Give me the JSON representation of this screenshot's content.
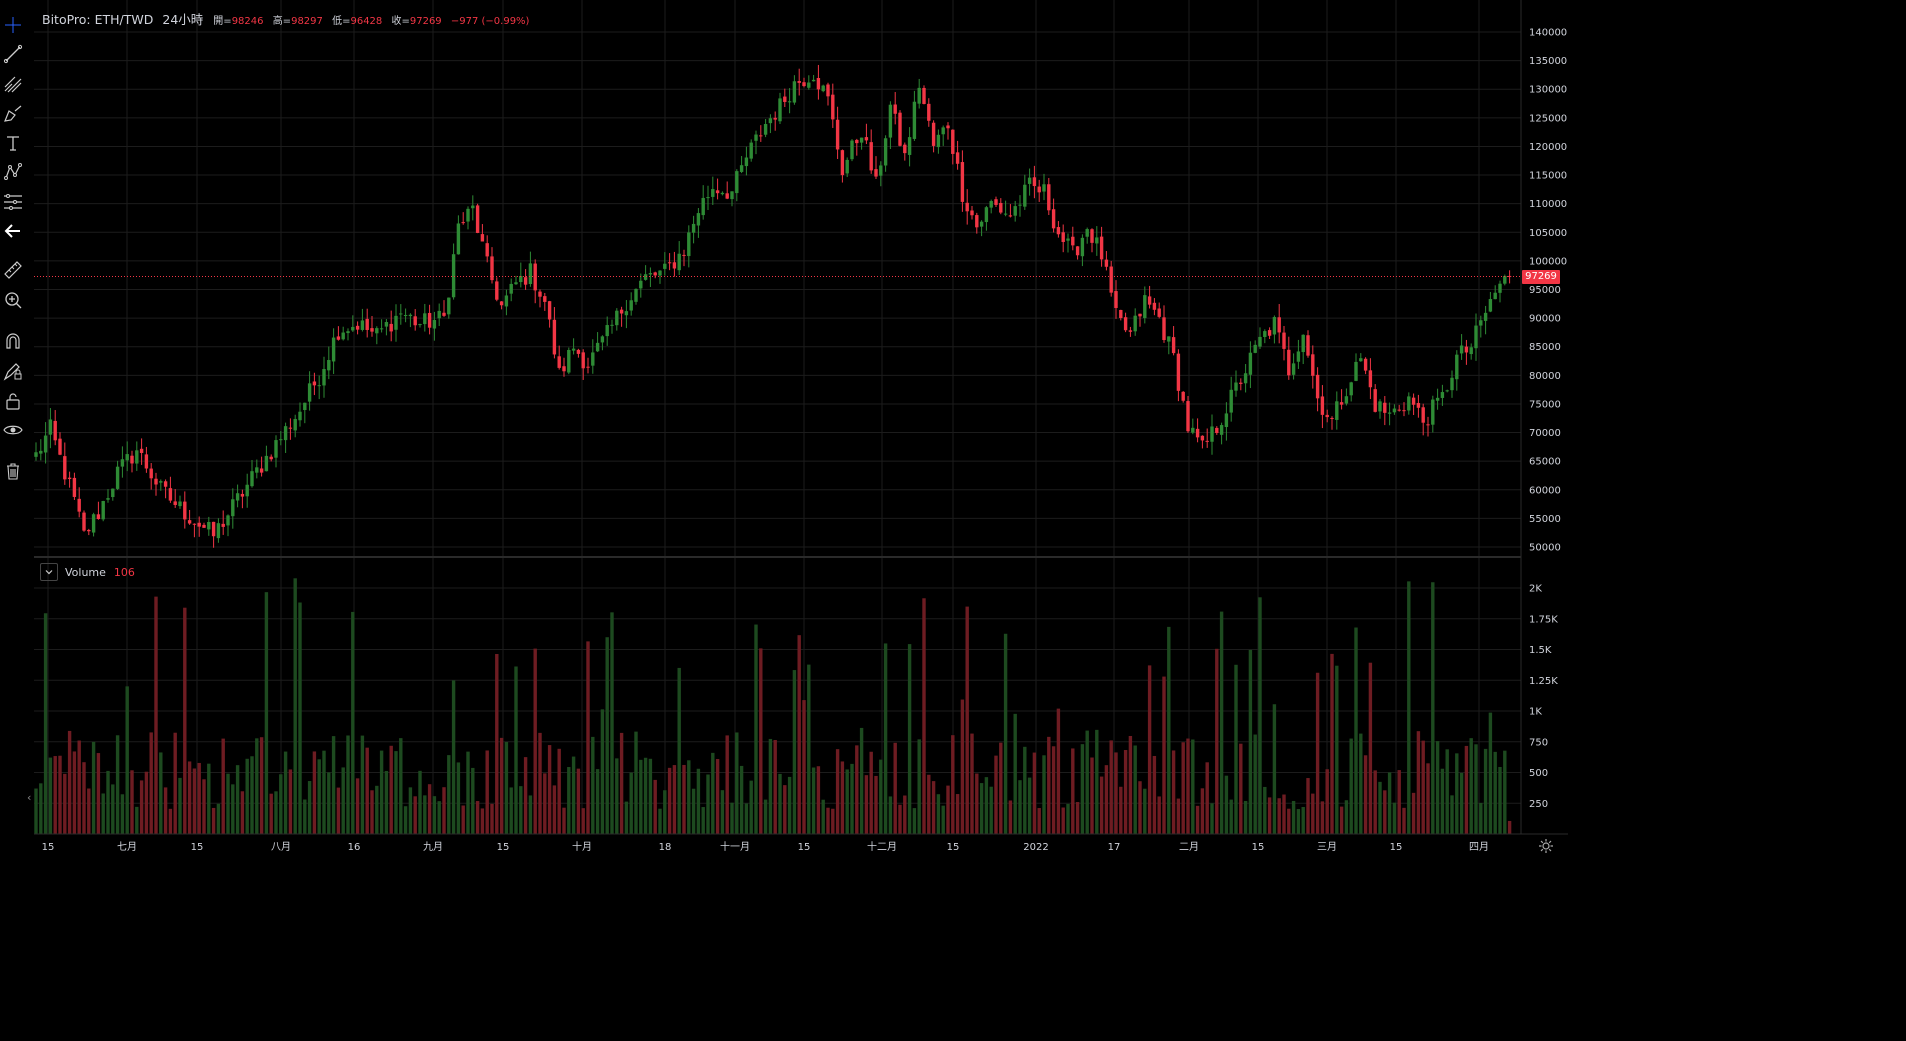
{
  "legend": {
    "symbol": "BitoPro: ETH/TWD",
    "timeframe": "24小時",
    "ohlc": [
      {
        "label": "開=",
        "value": "98246"
      },
      {
        "label": "高=",
        "value": "98297"
      },
      {
        "label": "低=",
        "value": "96428"
      },
      {
        "label": "收=",
        "value": "97269"
      }
    ],
    "change": "−977 (−0.99%)"
  },
  "volume_legend": {
    "label": "Volume",
    "value": "106"
  },
  "last_price": "97269",
  "colors": {
    "up": "#2e8b35",
    "down": "#f23645",
    "vol_up": "#1d4a1f",
    "vol_down": "#6e1c22",
    "grid": "#1c1c1c"
  },
  "toolbar": [
    "crosshair-icon",
    "trendline-icon",
    "pitchfork-icon",
    "brush-icon",
    "text-icon",
    "pattern-icon",
    "fib-icon",
    "back-arrow-icon",
    "ruler-icon",
    "zoom-in-icon",
    "magnet-icon",
    "lock-drawing-icon",
    "unlock-icon",
    "eye-icon",
    "trash-icon"
  ],
  "price_axis": [
    "140000",
    "135000",
    "130000",
    "125000",
    "120000",
    "115000",
    "110000",
    "105000",
    "100000",
    "95000",
    "90000",
    "85000",
    "80000",
    "75000",
    "70000",
    "65000",
    "60000",
    "55000",
    "50000"
  ],
  "volume_axis": [
    "2K",
    "1.75K",
    "1.5K",
    "1.25K",
    "1K",
    "750",
    "500",
    "250"
  ],
  "time_axis": [
    "15",
    "七月",
    "15",
    "八月",
    "16",
    "九月",
    "15",
    "十月",
    "18",
    "十一月",
    "15",
    "十二月",
    "15",
    "2022",
    "17",
    "二月",
    "15",
    "三月",
    "15",
    "四月"
  ],
  "chart_data": {
    "type": "candlestick",
    "price_ylim": [
      50000,
      140000
    ],
    "volume_ylim": [
      0,
      2000
    ],
    "waypoints": [
      [
        0,
        66000
      ],
      [
        3,
        70500
      ],
      [
        8,
        58000
      ],
      [
        10,
        52000
      ],
      [
        13,
        56000
      ],
      [
        17,
        63000
      ],
      [
        21,
        67000
      ],
      [
        26,
        60000
      ],
      [
        31,
        56000
      ],
      [
        37,
        52000
      ],
      [
        41,
        57000
      ],
      [
        45,
        62000
      ],
      [
        50,
        68000
      ],
      [
        55,
        74000
      ],
      [
        59,
        80000
      ],
      [
        63,
        88000
      ],
      [
        67,
        89000
      ],
      [
        71,
        87000
      ],
      [
        76,
        91000
      ],
      [
        80,
        89000
      ],
      [
        85,
        90000
      ],
      [
        88,
        106000
      ],
      [
        91,
        109000
      ],
      [
        94,
        99000
      ],
      [
        97,
        92000
      ],
      [
        100,
        96000
      ],
      [
        103,
        98000
      ],
      [
        106,
        93000
      ],
      [
        109,
        80000
      ],
      [
        112,
        85000
      ],
      [
        115,
        82000
      ],
      [
        119,
        87000
      ],
      [
        123,
        93000
      ],
      [
        127,
        97000
      ],
      [
        131,
        98000
      ],
      [
        135,
        102000
      ],
      [
        138,
        109000
      ],
      [
        141,
        113000
      ],
      [
        145,
        112000
      ],
      [
        148,
        118000
      ],
      [
        152,
        124000
      ],
      [
        155,
        127000
      ],
      [
        158,
        131000
      ],
      [
        162,
        133000
      ],
      [
        165,
        128000
      ],
      [
        168,
        116000
      ],
      [
        172,
        123000
      ],
      [
        175,
        113000
      ],
      [
        178,
        127000
      ],
      [
        181,
        118000
      ],
      [
        184,
        131000
      ],
      [
        187,
        120000
      ],
      [
        190,
        124000
      ],
      [
        193,
        112000
      ],
      [
        196,
        106000
      ],
      [
        199,
        110000
      ],
      [
        203,
        108000
      ],
      [
        207,
        113000
      ],
      [
        210,
        112000
      ],
      [
        213,
        105000
      ],
      [
        216,
        101000
      ],
      [
        219,
        106000
      ],
      [
        222,
        101000
      ],
      [
        225,
        90000
      ],
      [
        228,
        87000
      ],
      [
        231,
        93000
      ],
      [
        234,
        90000
      ],
      [
        237,
        83000
      ],
      [
        240,
        71000
      ],
      [
        243,
        67000
      ],
      [
        246,
        71000
      ],
      [
        249,
        76000
      ],
      [
        252,
        81000
      ],
      [
        255,
        86000
      ],
      [
        258,
        89000
      ],
      [
        261,
        81000
      ],
      [
        264,
        88000
      ],
      [
        267,
        76000
      ],
      [
        270,
        72000
      ],
      [
        273,
        78000
      ],
      [
        276,
        83000
      ],
      [
        279,
        75000
      ],
      [
        282,
        73000
      ],
      [
        286,
        76000
      ],
      [
        289,
        72000
      ],
      [
        293,
        76000
      ],
      [
        296,
        83000
      ],
      [
        299,
        85000
      ],
      [
        302,
        91000
      ],
      [
        305,
        96000
      ],
      [
        307,
        97269
      ]
    ]
  }
}
